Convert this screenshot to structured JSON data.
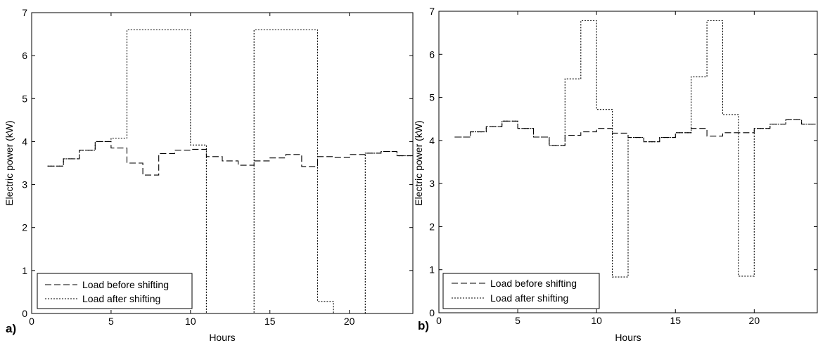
{
  "chart_data": [
    {
      "type": "line",
      "panel_label": "a)",
      "xlabel": "Hours",
      "ylabel": "Electric power (kW)",
      "xlim": [
        0,
        24
      ],
      "ylim": [
        0,
        7
      ],
      "xticks": [
        "0",
        "5",
        "10",
        "15",
        "20"
      ],
      "yticks": [
        "0",
        "1",
        "2",
        "3",
        "4",
        "5",
        "6",
        "7"
      ],
      "legend_placement": "bottom-left",
      "series": [
        {
          "name": "Load before shifting",
          "style": "dashed",
          "x": [
            1,
            2,
            3,
            4,
            5,
            6,
            7,
            8,
            9,
            10,
            11,
            12,
            13,
            14,
            15,
            16,
            17,
            18,
            19,
            20,
            21,
            22,
            23
          ],
          "values": [
            3.43,
            3.6,
            3.8,
            4.0,
            3.85,
            3.5,
            3.22,
            3.72,
            3.8,
            3.82,
            3.65,
            3.55,
            3.45,
            3.55,
            3.62,
            3.7,
            3.42,
            3.65,
            3.63,
            3.7,
            3.73,
            3.77,
            3.67
          ]
        },
        {
          "name": "Load after shifting",
          "style": "dotted",
          "x": [
            1,
            2,
            3,
            4,
            5,
            6,
            7,
            8,
            9,
            10,
            11,
            12,
            13,
            14,
            15,
            16,
            17,
            18,
            19,
            20,
            21,
            22,
            23
          ],
          "values": [
            3.43,
            3.6,
            3.8,
            4.0,
            4.08,
            6.6,
            6.6,
            6.6,
            6.6,
            3.92,
            0.0,
            0.0,
            0.0,
            6.6,
            6.6,
            6.6,
            6.6,
            0.28,
            0.0,
            0.0,
            3.73,
            3.77,
            3.67
          ]
        }
      ]
    },
    {
      "type": "line",
      "panel_label": "b)",
      "xlabel": "Hours",
      "ylabel": "Electric power (kW)",
      "xlim": [
        0,
        24
      ],
      "ylim": [
        0,
        7
      ],
      "xticks": [
        "0",
        "5",
        "10",
        "15",
        "20"
      ],
      "yticks": [
        "0",
        "1",
        "2",
        "3",
        "4",
        "5",
        "6",
        "7"
      ],
      "legend_placement": "bottom-left",
      "series": [
        {
          "name": "Load before shifting",
          "style": "dashed",
          "x": [
            1,
            2,
            3,
            4,
            5,
            6,
            7,
            8,
            9,
            10,
            11,
            12,
            13,
            14,
            15,
            16,
            17,
            18,
            19,
            20,
            21,
            22,
            23
          ],
          "values": [
            4.08,
            4.2,
            4.32,
            4.45,
            4.28,
            4.08,
            3.88,
            4.12,
            4.2,
            4.28,
            4.17,
            4.07,
            3.97,
            4.07,
            4.18,
            4.28,
            4.1,
            4.18,
            4.18,
            4.28,
            4.38,
            4.48,
            4.38
          ]
        },
        {
          "name": "Load after shifting",
          "style": "dotted",
          "x": [
            1,
            2,
            3,
            4,
            5,
            6,
            7,
            8,
            9,
            10,
            11,
            12,
            13,
            14,
            15,
            16,
            17,
            18,
            19,
            20,
            21,
            22,
            23
          ],
          "values": [
            4.08,
            4.2,
            4.32,
            4.45,
            4.28,
            4.08,
            3.88,
            5.43,
            6.78,
            4.72,
            0.83,
            4.07,
            3.97,
            4.07,
            4.18,
            5.48,
            6.78,
            4.6,
            0.85,
            4.28,
            4.38,
            4.48,
            4.38
          ]
        }
      ]
    }
  ]
}
